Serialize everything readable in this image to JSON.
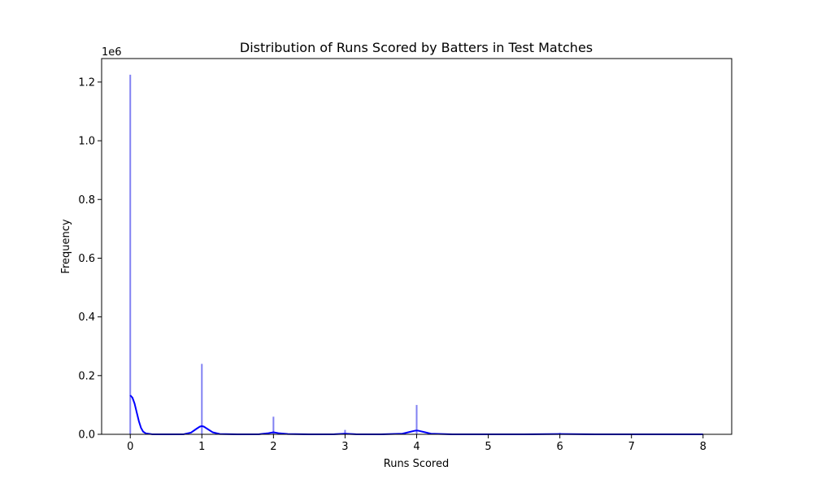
{
  "chart_data": {
    "type": "bar",
    "title": "Distribution of Runs Scored by Batters in Test Matches",
    "xlabel": "Runs Scored",
    "ylabel": "Frequency",
    "y_scale_label": "1e6",
    "xlim": [
      -0.4,
      8.4
    ],
    "ylim": [
      0,
      1.28
    ],
    "x_ticks": [
      0,
      1,
      2,
      3,
      4,
      5,
      6,
      7,
      8
    ],
    "x_tick_labels": [
      "0",
      "1",
      "2",
      "3",
      "4",
      "5",
      "6",
      "7",
      "8"
    ],
    "y_ticks": [
      0.0,
      0.2,
      0.4,
      0.6,
      0.8,
      1.0,
      1.2
    ],
    "y_tick_labels": [
      "0.0",
      "0.2",
      "0.4",
      "0.6",
      "0.8",
      "1.0",
      "1.2"
    ],
    "grid": false,
    "histogram": {
      "name": "histogram",
      "color": "#6b6bf0",
      "x": [
        0,
        1,
        2,
        3,
        4,
        5,
        6,
        7
      ],
      "values": [
        1.225,
        0.24,
        0.06,
        0.015,
        0.1,
        0.002,
        0.005,
        0.0005
      ]
    },
    "kde": {
      "name": "kde",
      "color": "#0000ff",
      "x": [
        0,
        0.03,
        0.06,
        0.09,
        0.12,
        0.15,
        0.18,
        0.22,
        0.3,
        0.5,
        0.75,
        0.85,
        0.92,
        0.97,
        1.0,
        1.03,
        1.08,
        1.15,
        1.25,
        1.5,
        1.8,
        1.93,
        2.0,
        2.07,
        2.2,
        2.5,
        2.85,
        3.0,
        3.15,
        3.5,
        3.8,
        3.9,
        3.97,
        4.0,
        4.03,
        4.1,
        4.2,
        4.5,
        5.0,
        5.5,
        6.0,
        6.5,
        7.0,
        7.5,
        8.0
      ],
      "values": [
        0.133,
        0.125,
        0.105,
        0.075,
        0.045,
        0.022,
        0.009,
        0.003,
        0.0005,
        0.0,
        0.0005,
        0.006,
        0.018,
        0.026,
        0.028,
        0.026,
        0.018,
        0.007,
        0.001,
        0.0,
        0.0005,
        0.004,
        0.007,
        0.004,
        0.001,
        0.0,
        0.0005,
        0.002,
        0.0005,
        0.0,
        0.002,
        0.008,
        0.012,
        0.013,
        0.012,
        0.008,
        0.002,
        0.0,
        0.0,
        0.0,
        0.001,
        0.0,
        0.0,
        0.0,
        0.0
      ]
    }
  }
}
